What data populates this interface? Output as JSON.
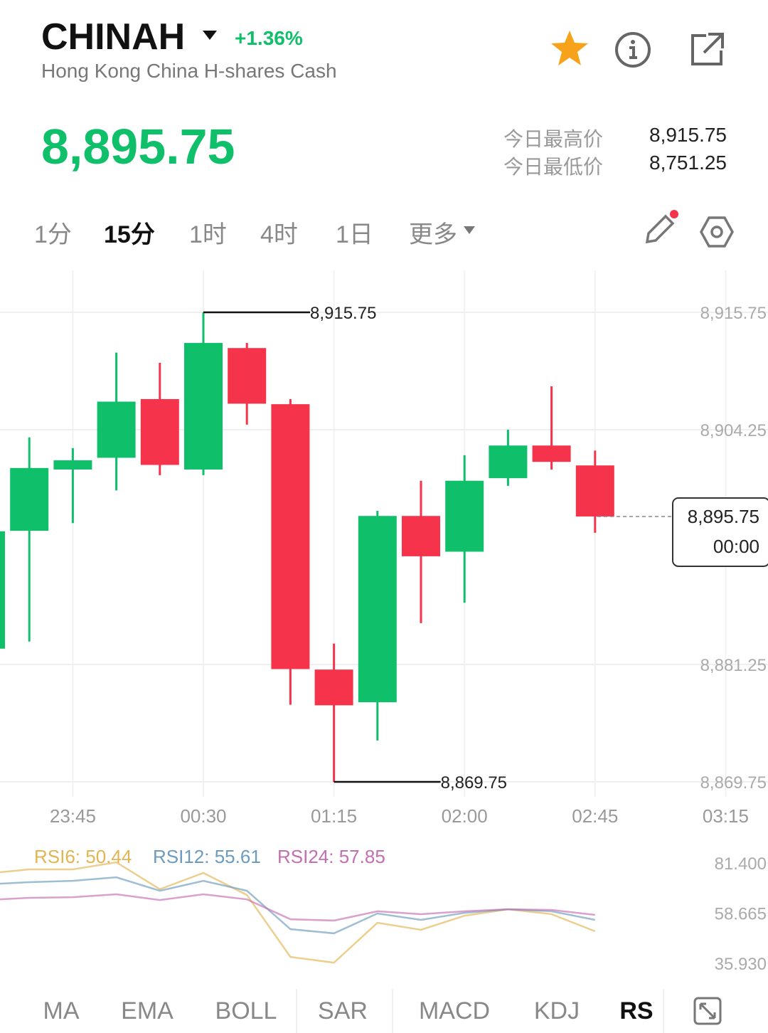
{
  "header": {
    "symbol": "CHINAH",
    "change": "+1.36%",
    "subtitle": "Hong Kong China H-shares Cash",
    "price": "8,895.75",
    "stats": [
      {
        "label": "今日最高价",
        "value": "8,915.75"
      },
      {
        "label": "今日最低价",
        "value": "8,751.25"
      }
    ]
  },
  "timeframes": [
    "1分",
    "15分",
    "1时",
    "4时",
    "1日",
    "更多"
  ],
  "indicator_tabs": [
    "MA",
    "EMA",
    "BOLL",
    "SAR",
    "MACD",
    "KDJ",
    "RS"
  ],
  "chart_data": [
    {
      "type": "candlestick",
      "up_color": "#0fbf6a",
      "down_color": "#f5334b",
      "categories": [
        null,
        null,
        "23:45",
        null,
        null,
        "00:30",
        null,
        null,
        "01:15",
        null,
        null,
        "02:00",
        null,
        null,
        "02:45",
        null,
        null,
        "03:15"
      ],
      "open": [
        8882.8,
        8894.35,
        8900.35,
        8901.5,
        8907.25,
        8900.35,
        8912.25,
        8906.75,
        8880.75,
        8877.55,
        8895.8,
        8892.3,
        8899.5,
        8902.7,
        8900.75,
        null,
        null,
        null
      ],
      "high": [
        8894.3,
        8903.5,
        8902.45,
        8911.8,
        8910.8,
        8915.75,
        8912.75,
        8907.25,
        8883.3,
        8896.3,
        8899.25,
        8901.75,
        8904.25,
        8908.5,
        8902.2,
        null,
        null,
        null
      ],
      "low": [
        8882.8,
        8883.5,
        8895.1,
        8898.3,
        8899.8,
        8899.8,
        8904.75,
        8877.3,
        8869.75,
        8873.8,
        8885.3,
        8887.3,
        8898.75,
        8900.35,
        8894.15,
        null,
        null,
        null
      ],
      "close": [
        8894.3,
        8900.5,
        8901.25,
        8907.0,
        8900.8,
        8912.75,
        8906.8,
        8880.8,
        8877.25,
        8895.8,
        8891.85,
        8899.25,
        8902.7,
        8901.1,
        8895.75,
        null,
        null,
        null
      ],
      "ylim": [
        8869.75,
        8915.75
      ],
      "yticks": [
        {
          "value": 8915.75,
          "label": "8,915.75"
        },
        {
          "value": 8904.25,
          "label": "8,904.25"
        },
        {
          "value": 8881.25,
          "label": "8,881.25"
        },
        {
          "value": 8869.75,
          "label": "8,869.75"
        }
      ],
      "high_marker": {
        "value": 8915.75,
        "label": "8,915.75"
      },
      "low_marker": {
        "value": 8869.75,
        "label": "8,869.75"
      },
      "current": {
        "value": 8895.75,
        "label": "8,895.75",
        "countdown": "00:00"
      },
      "grid": true
    },
    {
      "type": "line",
      "legend": [
        "RSI6: 50.44",
        "RSI12: 55.61",
        "RSI24: 57.85"
      ],
      "series": [
        {
          "name": "RSI6",
          "color": "#e2b552",
          "values": [
            76.6,
            78.5,
            78.5,
            81.7,
            69.5,
            76.9,
            66.9,
            38.8,
            36.2,
            54.3,
            51.1,
            57.5,
            60.4,
            58.2,
            50.44,
            null,
            null,
            null
          ]
        },
        {
          "name": "RSI12",
          "color": "#6c9bbd",
          "values": [
            71.7,
            72.7,
            73.3,
            74.9,
            68.8,
            73.3,
            68.8,
            51.4,
            49.5,
            58.5,
            55.6,
            58.8,
            60.4,
            59.5,
            55.61,
            null,
            null,
            null
          ]
        },
        {
          "name": "RSI24",
          "color": "#c46fb0",
          "values": [
            64.6,
            65.6,
            65.9,
            67.2,
            64.6,
            67.2,
            64.9,
            55.9,
            55.3,
            59.5,
            58.2,
            59.5,
            60.4,
            60.1,
            57.85,
            null,
            null,
            null
          ]
        }
      ],
      "ylim": [
        35.93,
        81.4
      ],
      "yticks": [
        {
          "value": 81.4,
          "label": "81.400"
        },
        {
          "value": 58.665,
          "label": "58.665"
        },
        {
          "value": 35.93,
          "label": "35.930"
        }
      ]
    }
  ]
}
